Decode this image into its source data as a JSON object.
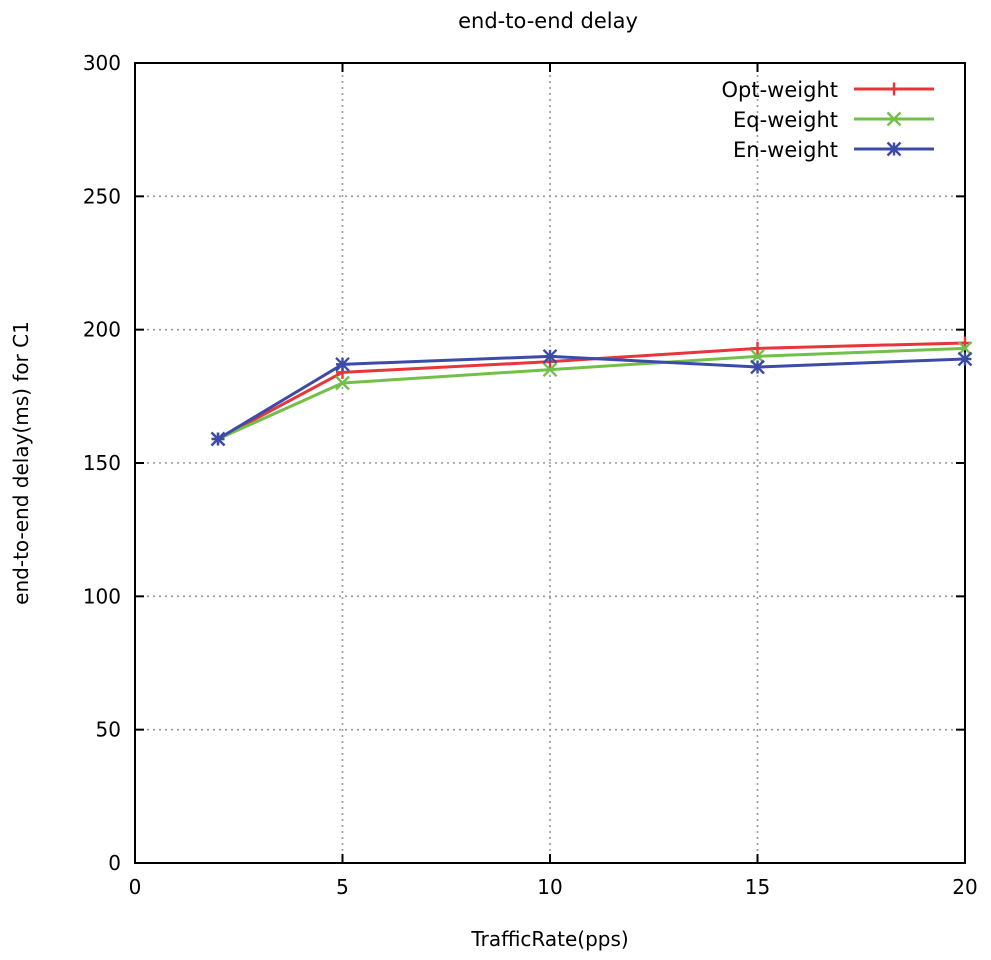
{
  "chart_data": {
    "type": "line",
    "title": "end-to-end delay",
    "xlabel": "TrafficRate(pps)",
    "ylabel": "end-to-end delay(ms)  for C1",
    "xlim": [
      0,
      20
    ],
    "ylim": [
      0,
      300
    ],
    "xticks": [
      0,
      5,
      10,
      15,
      20
    ],
    "yticks": [
      0,
      50,
      100,
      150,
      200,
      250,
      300
    ],
    "grid": true,
    "legend_position": "top-right",
    "x": [
      2,
      5,
      10,
      15,
      20
    ],
    "series": [
      {
        "name": "Opt-weight",
        "values": [
          159,
          184,
          188,
          193,
          195
        ],
        "color": "#e8343a",
        "marker": "plus"
      },
      {
        "name": "Eq-weight",
        "values": [
          159,
          180,
          185,
          190,
          193
        ],
        "color": "#72c04a",
        "marker": "cross"
      },
      {
        "name": "En-weight",
        "values": [
          159,
          187,
          190,
          186,
          189
        ],
        "color": "#3c4ca6",
        "marker": "star"
      }
    ]
  }
}
